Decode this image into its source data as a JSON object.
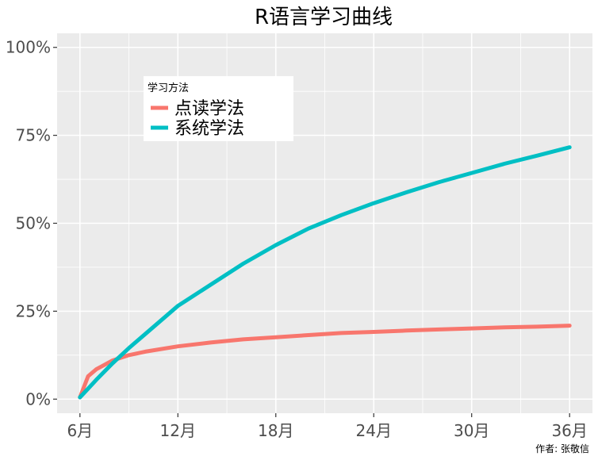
{
  "chart_data": {
    "type": "line",
    "title": "R语言学习曲线",
    "caption": "作者: 张敬信",
    "xlabel": "",
    "ylabel": "",
    "x_unit": "月",
    "xlim": [
      4.6,
      37.4
    ],
    "ylim": [
      -0.04,
      1.04
    ],
    "x_ticks": [
      6,
      12,
      18,
      24,
      30,
      36
    ],
    "x_tick_labels": [
      "6月",
      "12月",
      "18月",
      "24月",
      "30月",
      "36月"
    ],
    "y_ticks": [
      0,
      0.25,
      0.5,
      0.75,
      1.0
    ],
    "y_tick_labels": [
      "0%",
      "25%",
      "50%",
      "75%",
      "100%"
    ],
    "grid": true,
    "legend": {
      "title": "学习方法",
      "placement": "top-left"
    },
    "x": [
      6,
      6.5,
      7,
      8,
      9,
      10,
      12,
      14,
      16,
      18,
      20,
      22,
      24,
      26,
      28,
      30,
      32,
      34,
      36
    ],
    "series": [
      {
        "name": "点读学法",
        "color": "#F8766D",
        "values": [
          0.005,
          0.065,
          0.085,
          0.11,
          0.125,
          0.135,
          0.15,
          0.161,
          0.17,
          0.176,
          0.182,
          0.188,
          0.191,
          0.195,
          0.198,
          0.201,
          0.204,
          0.206,
          0.209
        ]
      },
      {
        "name": "系统学法",
        "color": "#00BFC4",
        "values": [
          0.005,
          0.03,
          0.055,
          0.102,
          0.145,
          0.185,
          0.265,
          0.325,
          0.385,
          0.438,
          0.485,
          0.523,
          0.557,
          0.588,
          0.617,
          0.643,
          0.669,
          0.692,
          0.716
        ]
      }
    ]
  }
}
